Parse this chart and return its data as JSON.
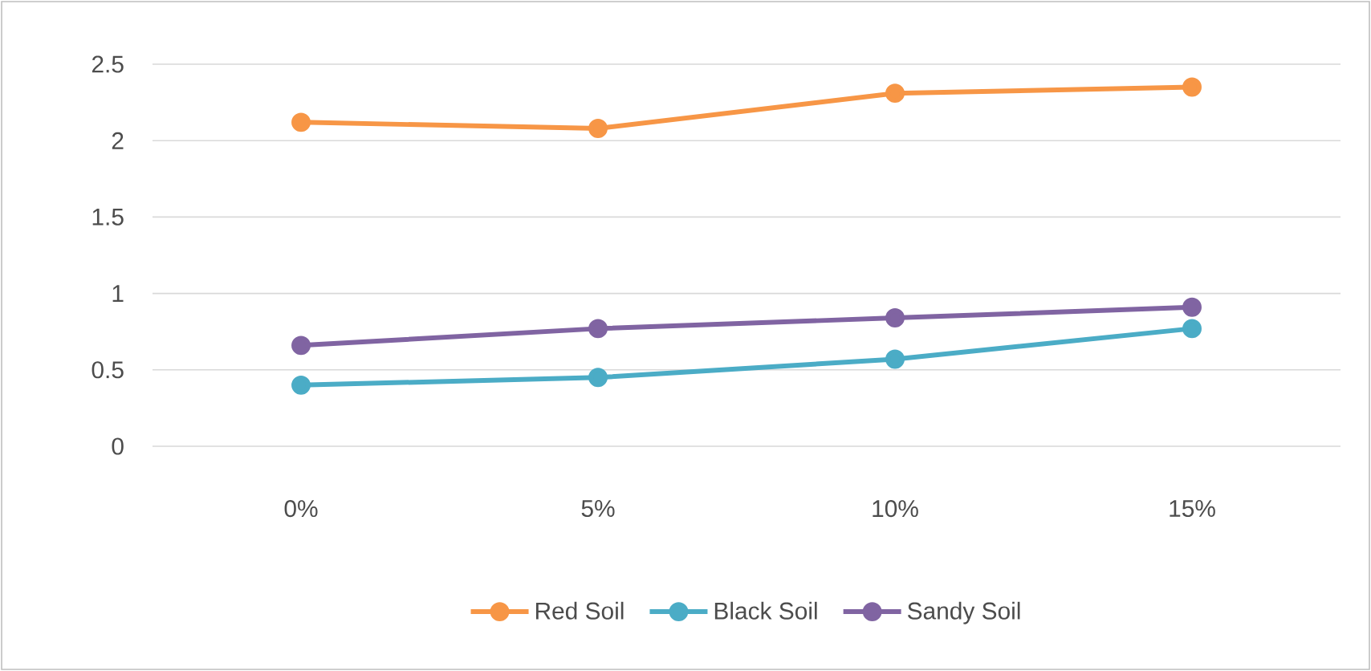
{
  "chart_data": {
    "type": "line",
    "categories": [
      "0%",
      "5%",
      "10%",
      "15%"
    ],
    "series": [
      {
        "name": "Red Soil",
        "color": "#f79646",
        "values": [
          2.12,
          2.08,
          2.31,
          2.35
        ]
      },
      {
        "name": "Black Soil",
        "color": "#4bacc6",
        "values": [
          0.4,
          0.45,
          0.57,
          0.77
        ]
      },
      {
        "name": "Sandy Soil",
        "color": "#8064a2",
        "values": [
          0.66,
          0.77,
          0.84,
          0.91
        ]
      }
    ],
    "ylim": [
      0,
      2.5
    ],
    "yticks": [
      0,
      0.5,
      1,
      1.5,
      2,
      2.5
    ],
    "grid": "y",
    "legend": "bottom",
    "marker": "circle",
    "line_style": "solid"
  }
}
